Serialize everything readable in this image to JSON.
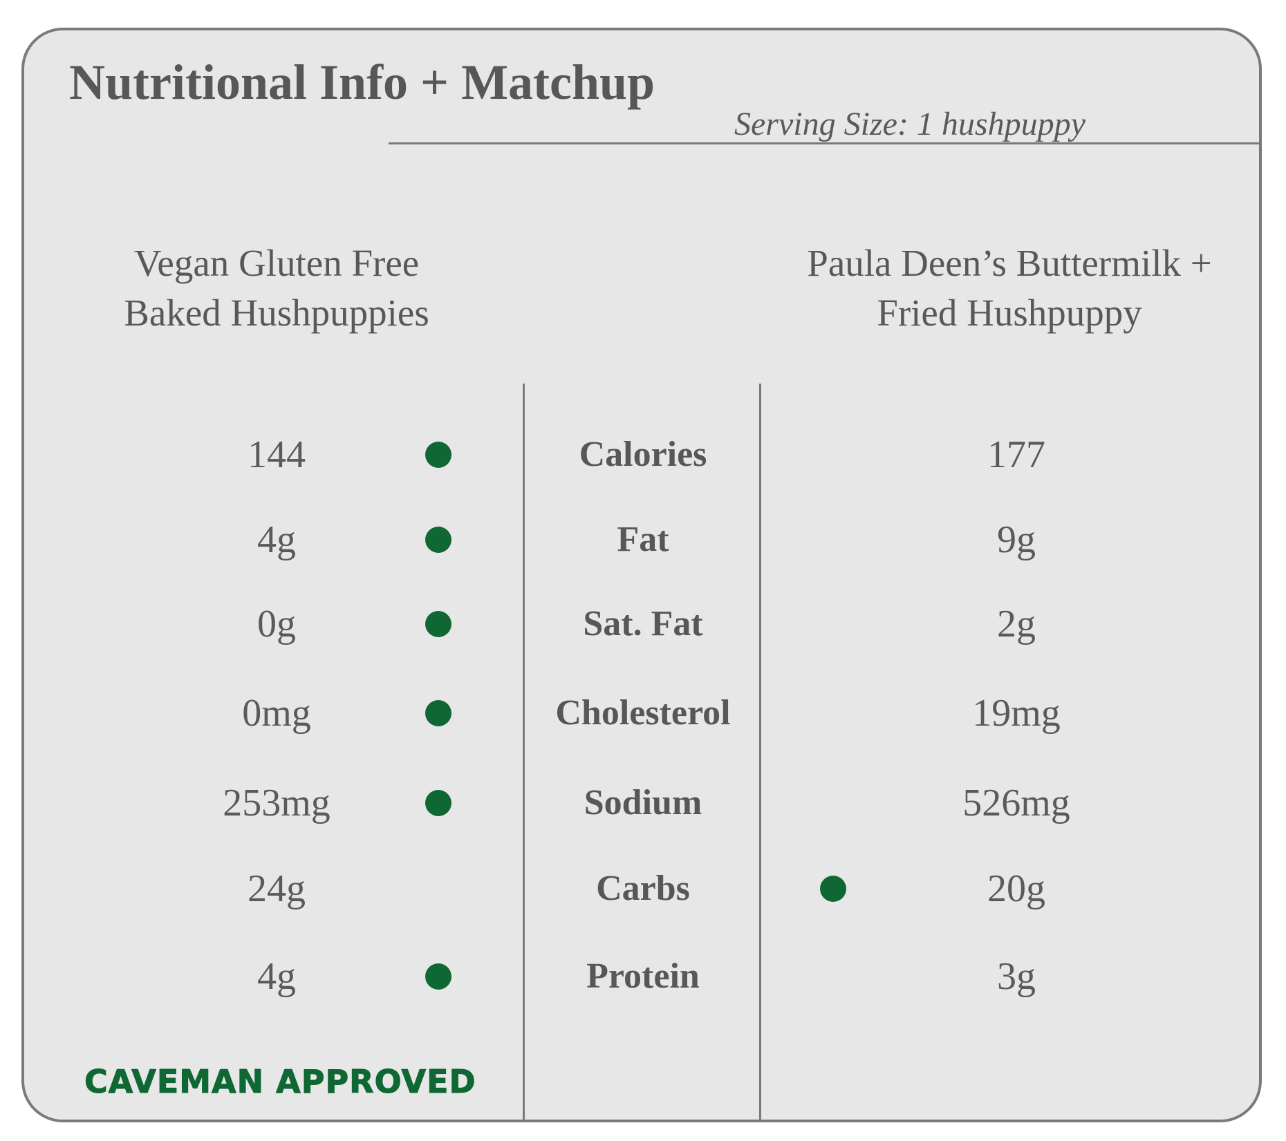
{
  "title": "Nutritional Info + Matchup",
  "serving_size": "Serving Size: 1 hushpuppy",
  "columns": {
    "left_line1": "Vegan Gluten Free",
    "left_line2": "Baked Hushpuppies",
    "right_line1": "Paula Deen’s Buttermilk +",
    "right_line2": "Fried Hushpuppy"
  },
  "rows": [
    {
      "nutrient": "Calories",
      "left": "144",
      "right": "177",
      "winner": "left"
    },
    {
      "nutrient": "Fat",
      "left": "4g",
      "right": "9g",
      "winner": "left"
    },
    {
      "nutrient": "Sat. Fat",
      "left": "0g",
      "right": "2g",
      "winner": "left"
    },
    {
      "nutrient": "Cholesterol",
      "left": "0mg",
      "right": "19mg",
      "winner": "left"
    },
    {
      "nutrient": "Sodium",
      "left": "253mg",
      "right": "526mg",
      "winner": "left"
    },
    {
      "nutrient": "Carbs",
      "left": "24g",
      "right": "20g",
      "winner": "right"
    },
    {
      "nutrient": "Protein",
      "left": "4g",
      "right": "3g",
      "winner": "left"
    }
  ],
  "badge": "CAVEMAN APPROVED",
  "colors": {
    "winner_dot": "#0f6734",
    "background": "#e7e7e7",
    "text": "#575757"
  },
  "icons": {
    "winner_marker": "green-dot-icon"
  }
}
